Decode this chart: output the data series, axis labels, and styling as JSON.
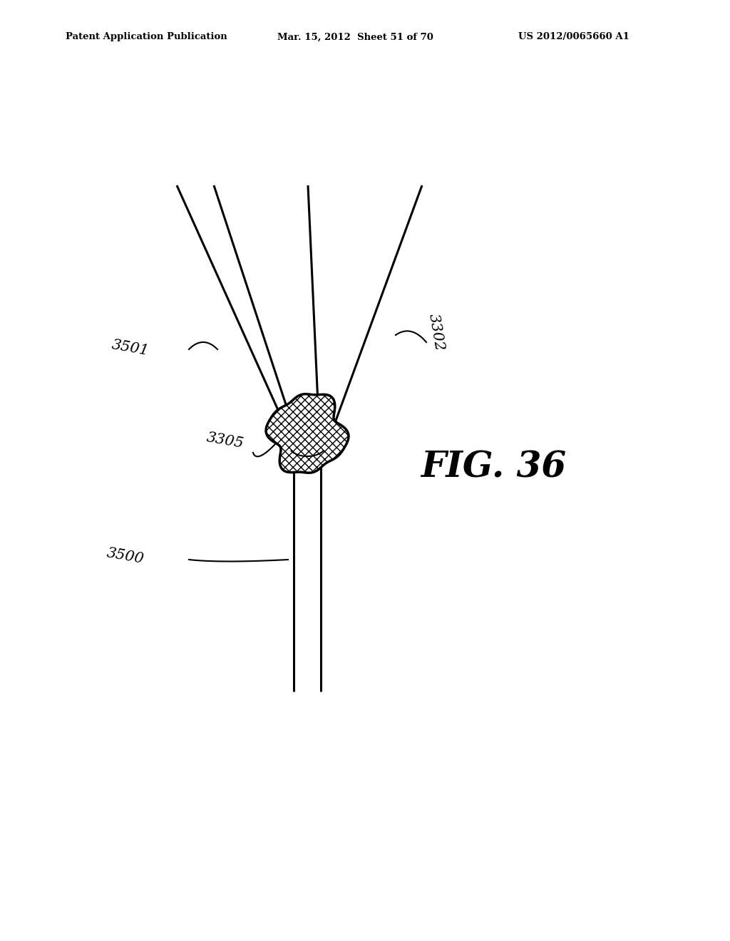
{
  "bg_color": "#ffffff",
  "header_left": "Patent Application Publication",
  "header_mid": "Mar. 15, 2012  Sheet 51 of 70",
  "header_right": "US 2012/0065660 A1",
  "fig_label": "FIG. 36",
  "line_color": "#000000",
  "line_width": 2.2,
  "vessel_lw": 2.2,
  "branch_lw": 2.2,
  "thrombus_lw": 2.5,
  "fig_fontsize": 36,
  "label_fontsize": 15
}
